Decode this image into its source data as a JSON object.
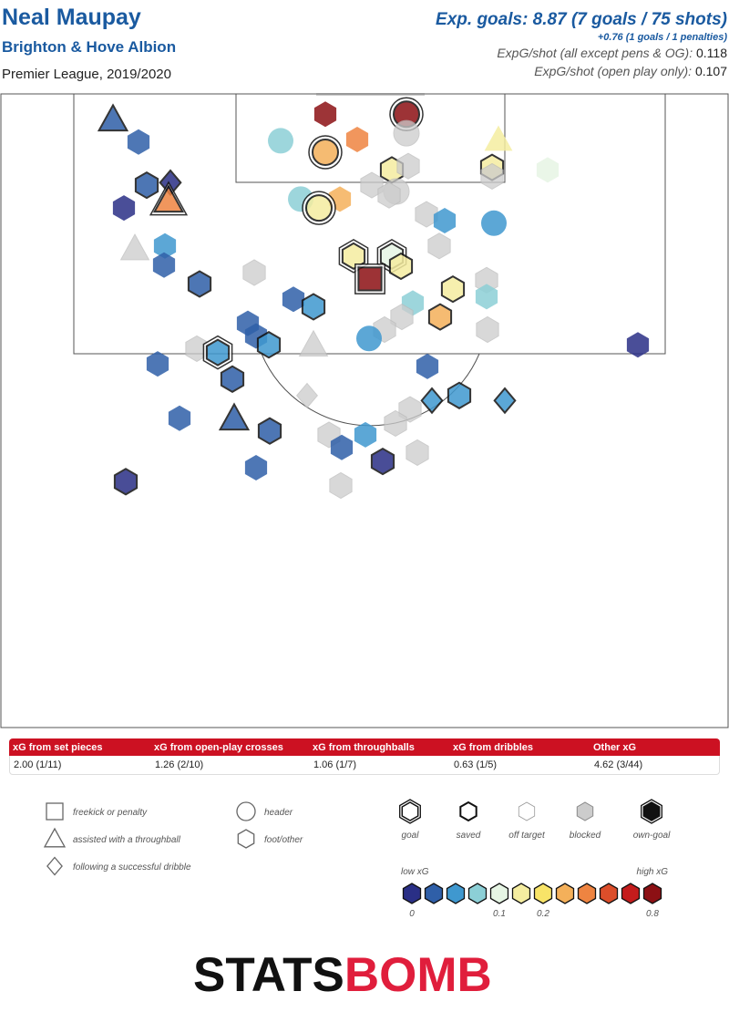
{
  "header": {
    "player": "Neal Maupay",
    "team": "Brighton & Hove Albion",
    "competition": "Premier League, 2019/2020",
    "xg_main": "Exp. goals: 8.87 (7 goals / 75 shots)",
    "xg_sub": "+0.76 (1 goals / 1 penalties)",
    "xg_per_shot_label": "ExpG/shot (all except pens & OG): ",
    "xg_per_shot_value": "0.118",
    "xg_per_shot_open_label": "ExpG/shot (open play only): ",
    "xg_per_shot_open_value": "0.107"
  },
  "summary": {
    "headers": [
      "xG from set pieces",
      "xG from open-play crosses",
      "xG from throughballs",
      "xG from dribbles",
      "Other xG"
    ],
    "values": [
      "2.00 (1/11)",
      "1.26 (2/10)",
      "1.06 (1/7)",
      "0.63 (1/5)",
      "4.62 (3/44)"
    ]
  },
  "legend": {
    "shapes": [
      {
        "shape": "square",
        "label": "freekick or penalty"
      },
      {
        "shape": "triangle",
        "label": "assisted with a throughball"
      },
      {
        "shape": "diamond",
        "label": "following a successful dribble"
      },
      {
        "shape": "circle",
        "label": "header"
      },
      {
        "shape": "hexagon",
        "label": "foot/other"
      }
    ],
    "outcomes": [
      "goal",
      "saved",
      "off target",
      "blocked",
      "own-goal"
    ],
    "scale": {
      "low_label": "low xG",
      "high_label": "high xG",
      "tick_labels": [
        "0",
        "0.1",
        "0.2",
        "0.8"
      ],
      "colors": [
        "#2a2f86",
        "#2f5fa8",
        "#3f98cf",
        "#8ccfd6",
        "#e6f5e4",
        "#f5eda0",
        "#f8e468",
        "#f4b05a",
        "#ee8441",
        "#dc4e2a",
        "#c41c1c",
        "#8c1014"
      ]
    }
  },
  "brand": {
    "part1": "STATS",
    "part2": "BOMB",
    "accent": "#e01e3c"
  },
  "chart_data": {
    "type": "scatter",
    "coordinate_note": "x: pitch width 0-80 (left to right), y: distance from goal line 0-50",
    "outcome_key": [
      "goal",
      "saved",
      "off target",
      "blocked"
    ],
    "shots": [
      {
        "x": 44.6,
        "y": 1.6,
        "type": "circle",
        "outcome": "goal",
        "xg": 0.8
      },
      {
        "x": 35.7,
        "y": 1.6,
        "type": "hexagon",
        "outcome": "off target",
        "xg": 0.8
      },
      {
        "x": 44.6,
        "y": 3.1,
        "type": "circle",
        "outcome": "blocked",
        "xg": 0.0
      },
      {
        "x": 30.8,
        "y": 3.7,
        "type": "circle",
        "outcome": "off target",
        "xg": 0.07
      },
      {
        "x": 39.2,
        "y": 3.6,
        "type": "hexagon",
        "outcome": "off target",
        "xg": 0.35
      },
      {
        "x": 35.7,
        "y": 4.6,
        "type": "circle",
        "outcome": "goal",
        "xg": 0.3
      },
      {
        "x": 54.7,
        "y": 3.6,
        "type": "triangle",
        "outcome": "off target",
        "xg": 0.15
      },
      {
        "x": 54.0,
        "y": 5.8,
        "type": "hexagon",
        "outcome": "saved",
        "xg": 0.15
      },
      {
        "x": 54.0,
        "y": 6.5,
        "type": "hexagon",
        "outcome": "blocked",
        "xg": 0.0
      },
      {
        "x": 60.1,
        "y": 6.0,
        "type": "hexagon",
        "outcome": "off target",
        "xg": 0.09
      },
      {
        "x": 43.0,
        "y": 6.0,
        "type": "hexagon",
        "outcome": "saved",
        "xg": 0.15
      },
      {
        "x": 44.8,
        "y": 5.7,
        "type": "hexagon",
        "outcome": "blocked",
        "xg": 0.0
      },
      {
        "x": 40.8,
        "y": 7.2,
        "type": "hexagon",
        "outcome": "blocked",
        "xg": 0.0
      },
      {
        "x": 43.5,
        "y": 7.7,
        "type": "circle",
        "outcome": "blocked",
        "xg": 0.0
      },
      {
        "x": 42.7,
        "y": 8.0,
        "type": "hexagon",
        "outcome": "blocked",
        "xg": 0.0
      },
      {
        "x": 33.0,
        "y": 8.3,
        "type": "circle",
        "outcome": "off target",
        "xg": 0.07
      },
      {
        "x": 37.3,
        "y": 8.3,
        "type": "hexagon",
        "outcome": "off target",
        "xg": 0.3
      },
      {
        "x": 35.0,
        "y": 9.0,
        "type": "circle",
        "outcome": "goal",
        "xg": 0.15
      },
      {
        "x": 46.8,
        "y": 9.5,
        "type": "hexagon",
        "outcome": "blocked",
        "xg": 0.0
      },
      {
        "x": 48.8,
        "y": 10.0,
        "type": "hexagon",
        "outcome": "off target",
        "xg": 0.04
      },
      {
        "x": 54.2,
        "y": 10.2,
        "type": "circle",
        "outcome": "off target",
        "xg": 0.04
      },
      {
        "x": 48.2,
        "y": 12.0,
        "type": "hexagon",
        "outcome": "blocked",
        "xg": 0.0
      },
      {
        "x": 38.8,
        "y": 12.8,
        "type": "hexagon",
        "outcome": "goal",
        "xg": 0.15
      },
      {
        "x": 43.0,
        "y": 12.8,
        "type": "hexagon",
        "outcome": "goal",
        "xg": 0.1
      },
      {
        "x": 44.0,
        "y": 13.6,
        "type": "hexagon",
        "outcome": "saved",
        "xg": 0.15
      },
      {
        "x": 40.6,
        "y": 14.6,
        "type": "square",
        "outcome": "goal",
        "xg": 0.8
      },
      {
        "x": 49.7,
        "y": 15.4,
        "type": "hexagon",
        "outcome": "saved",
        "xg": 0.15
      },
      {
        "x": 53.4,
        "y": 14.7,
        "type": "hexagon",
        "outcome": "blocked",
        "xg": 0.0
      },
      {
        "x": 53.4,
        "y": 16.0,
        "type": "hexagon",
        "outcome": "off target",
        "xg": 0.07
      },
      {
        "x": 45.3,
        "y": 16.5,
        "type": "hexagon",
        "outcome": "off target",
        "xg": 0.07
      },
      {
        "x": 44.1,
        "y": 17.6,
        "type": "hexagon",
        "outcome": "blocked",
        "xg": 0.0
      },
      {
        "x": 48.3,
        "y": 17.6,
        "type": "hexagon",
        "outcome": "saved",
        "xg": 0.3
      },
      {
        "x": 53.5,
        "y": 18.6,
        "type": "hexagon",
        "outcome": "blocked",
        "xg": 0.0
      },
      {
        "x": 42.2,
        "y": 18.6,
        "type": "hexagon",
        "outcome": "blocked",
        "xg": 0.0
      },
      {
        "x": 40.5,
        "y": 19.3,
        "type": "circle",
        "outcome": "off target",
        "xg": 0.04
      },
      {
        "x": 12.4,
        "y": 2.0,
        "type": "triangle",
        "outcome": "saved",
        "xg": 0.02
      },
      {
        "x": 15.2,
        "y": 3.8,
        "type": "hexagon",
        "outcome": "off target",
        "xg": 0.02
      },
      {
        "x": 16.1,
        "y": 7.2,
        "type": "hexagon",
        "outcome": "saved",
        "xg": 0.02
      },
      {
        "x": 18.7,
        "y": 7.0,
        "type": "diamond",
        "outcome": "saved",
        "xg": 0.01
      },
      {
        "x": 18.5,
        "y": 8.4,
        "type": "triangle",
        "outcome": "goal",
        "xg": 0.35
      },
      {
        "x": 13.6,
        "y": 9.0,
        "type": "hexagon",
        "outcome": "off target",
        "xg": 0.01
      },
      {
        "x": 14.8,
        "y": 12.2,
        "type": "triangle",
        "outcome": "blocked",
        "xg": 0.0
      },
      {
        "x": 18.1,
        "y": 12.0,
        "type": "hexagon",
        "outcome": "off target",
        "xg": 0.04
      },
      {
        "x": 18.0,
        "y": 13.5,
        "type": "hexagon",
        "outcome": "off target",
        "xg": 0.02
      },
      {
        "x": 21.9,
        "y": 15.0,
        "type": "hexagon",
        "outcome": "saved",
        "xg": 0.02
      },
      {
        "x": 27.9,
        "y": 14.1,
        "type": "hexagon",
        "outcome": "blocked",
        "xg": 0.0
      },
      {
        "x": 32.2,
        "y": 16.2,
        "type": "hexagon",
        "outcome": "off target",
        "xg": 0.03
      },
      {
        "x": 34.4,
        "y": 16.8,
        "type": "hexagon",
        "outcome": "saved",
        "xg": 0.05
      },
      {
        "x": 27.2,
        "y": 18.1,
        "type": "hexagon",
        "outcome": "off target",
        "xg": 0.02
      },
      {
        "x": 28.1,
        "y": 19.1,
        "type": "hexagon",
        "outcome": "off target",
        "xg": 0.02
      },
      {
        "x": 29.5,
        "y": 19.8,
        "type": "hexagon",
        "outcome": "saved",
        "xg": 0.04
      },
      {
        "x": 34.4,
        "y": 19.8,
        "type": "triangle",
        "outcome": "blocked",
        "xg": 0.0
      },
      {
        "x": 21.6,
        "y": 20.1,
        "type": "hexagon",
        "outcome": "blocked",
        "xg": 0.0
      },
      {
        "x": 23.9,
        "y": 20.4,
        "type": "hexagon",
        "outcome": "goal",
        "xg": 0.05
      },
      {
        "x": 70.0,
        "y": 19.8,
        "type": "hexagon",
        "outcome": "off target",
        "xg": 0.01
      },
      {
        "x": 17.3,
        "y": 21.3,
        "type": "hexagon",
        "outcome": "off target",
        "xg": 0.02
      },
      {
        "x": 25.5,
        "y": 22.5,
        "type": "hexagon",
        "outcome": "saved",
        "xg": 0.03
      },
      {
        "x": 46.9,
        "y": 21.5,
        "type": "hexagon",
        "outcome": "off target",
        "xg": 0.03
      },
      {
        "x": 33.7,
        "y": 23.8,
        "type": "diamond",
        "outcome": "blocked",
        "xg": 0.0
      },
      {
        "x": 47.4,
        "y": 24.2,
        "type": "diamond",
        "outcome": "saved",
        "xg": 0.05
      },
      {
        "x": 50.4,
        "y": 23.8,
        "type": "hexagon",
        "outcome": "saved",
        "xg": 0.05
      },
      {
        "x": 55.4,
        "y": 24.2,
        "type": "diamond",
        "outcome": "saved",
        "xg": 0.05
      },
      {
        "x": 45.0,
        "y": 24.9,
        "type": "hexagon",
        "outcome": "blocked",
        "xg": 0.0
      },
      {
        "x": 19.7,
        "y": 25.6,
        "type": "hexagon",
        "outcome": "off target",
        "xg": 0.02
      },
      {
        "x": 25.7,
        "y": 25.6,
        "type": "triangle",
        "outcome": "saved",
        "xg": 0.02
      },
      {
        "x": 43.4,
        "y": 26.0,
        "type": "hexagon",
        "outcome": "blocked",
        "xg": 0.0
      },
      {
        "x": 29.6,
        "y": 26.6,
        "type": "hexagon",
        "outcome": "saved",
        "xg": 0.02
      },
      {
        "x": 36.1,
        "y": 26.9,
        "type": "hexagon",
        "outcome": "blocked",
        "xg": 0.0
      },
      {
        "x": 40.1,
        "y": 26.9,
        "type": "hexagon",
        "outcome": "off target",
        "xg": 0.04
      },
      {
        "x": 37.5,
        "y": 27.9,
        "type": "hexagon",
        "outcome": "off target",
        "xg": 0.03
      },
      {
        "x": 45.8,
        "y": 28.3,
        "type": "hexagon",
        "outcome": "blocked",
        "xg": 0.0
      },
      {
        "x": 28.1,
        "y": 29.5,
        "type": "hexagon",
        "outcome": "off target",
        "xg": 0.02
      },
      {
        "x": 42.0,
        "y": 29.0,
        "type": "hexagon",
        "outcome": "saved",
        "xg": 0.01
      },
      {
        "x": 13.8,
        "y": 30.6,
        "type": "hexagon",
        "outcome": "saved",
        "xg": 0.01
      },
      {
        "x": 37.4,
        "y": 30.9,
        "type": "hexagon",
        "outcome": "blocked",
        "xg": 0.0
      }
    ]
  }
}
